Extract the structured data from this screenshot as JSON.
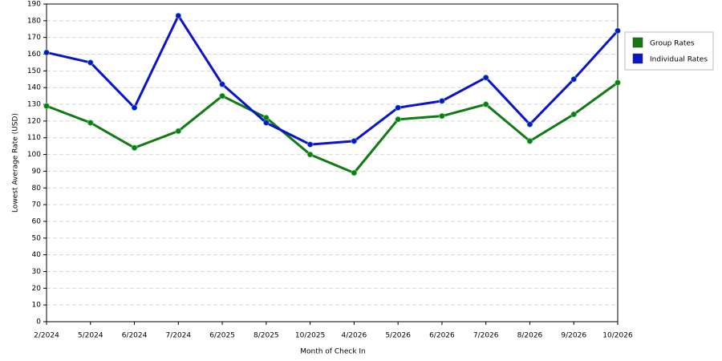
{
  "chart_data": {
    "type": "line",
    "x_label": "Month of Check In",
    "y_label": "Lowest Average Rate (USD)",
    "categories": [
      "2/2024",
      "5/2024",
      "6/2024",
      "7/2024",
      "6/2025",
      "8/2025",
      "10/2025",
      "4/2026",
      "5/2026",
      "6/2026",
      "7/2026",
      "8/2026",
      "9/2026",
      "10/2026"
    ],
    "series": [
      {
        "name": "Group Rates",
        "color": "#127a12",
        "values": [
          129,
          119,
          104,
          114,
          135,
          122,
          100,
          89,
          121,
          123,
          130,
          108,
          124,
          143
        ]
      },
      {
        "name": "Individual Rates",
        "color": "#0a14c8",
        "values": [
          161,
          155,
          128,
          183,
          142,
          119,
          106,
          108,
          128,
          132,
          146,
          118,
          145,
          174
        ]
      }
    ],
    "ylim": [
      0,
      190
    ],
    "yticks": [
      0,
      10,
      20,
      30,
      40,
      50,
      60,
      70,
      80,
      90,
      100,
      110,
      120,
      130,
      140,
      150,
      160,
      170,
      180,
      190
    ],
    "grid": true,
    "legend": "right"
  }
}
